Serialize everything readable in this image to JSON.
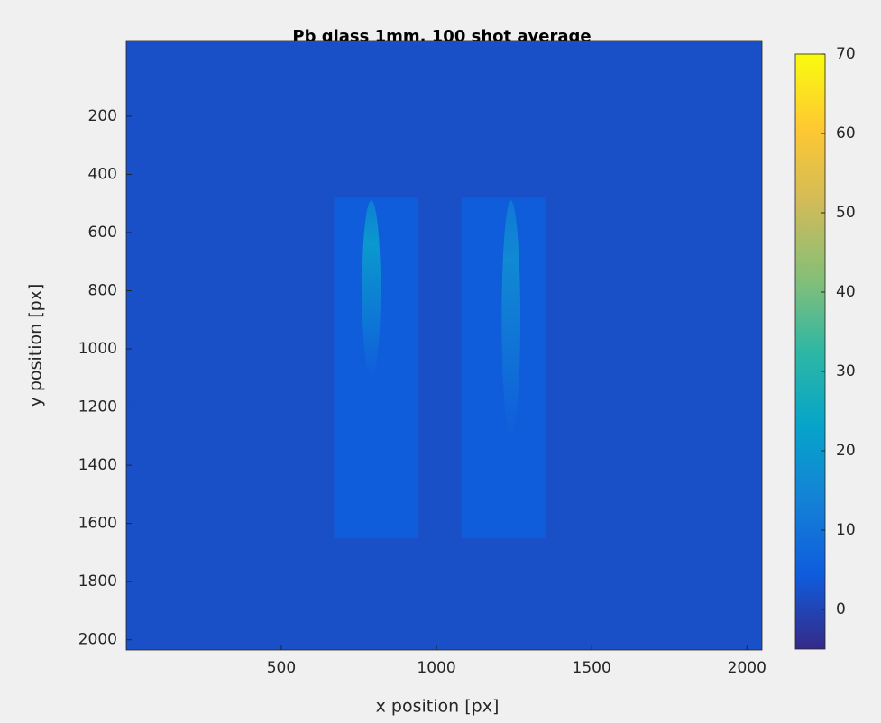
{
  "chart_data": {
    "type": "image",
    "title": "Pb glass 1mm, 100 shot average",
    "x_label": "x position [px]",
    "y_label": "y position [px]",
    "xlim": [
      0.5,
      2048.5
    ],
    "ylim": [
      -60,
      2035
    ],
    "xticks": [
      500,
      1000,
      1500,
      2000
    ],
    "yticks": [
      200,
      400,
      600,
      800,
      1000,
      1200,
      1400,
      1600,
      1800,
      2000
    ],
    "clim": [
      -5,
      70
    ],
    "cticks": [
      0,
      10,
      20,
      30,
      40,
      50,
      60,
      70
    ],
    "colormap": [
      "#352a87",
      "#0f5cdd",
      "#1481d6",
      "#06a4ca",
      "#2eb7a4",
      "#87bf77",
      "#d1bb59",
      "#fec832",
      "#f9fb0e"
    ],
    "background": 2,
    "regions": [
      {
        "x": [
          670,
          940
        ],
        "y": [
          480,
          1650
        ],
        "value": 5
      },
      {
        "x": [
          1080,
          1350
        ],
        "y": [
          480,
          1650
        ],
        "value": 5
      }
    ],
    "streaks": [
      {
        "x": [
          760,
          820
        ],
        "y": [
          490,
          1100
        ],
        "value": 20
      },
      {
        "x": [
          1210,
          1270
        ],
        "y": [
          490,
          1300
        ],
        "value": 16
      }
    ]
  }
}
